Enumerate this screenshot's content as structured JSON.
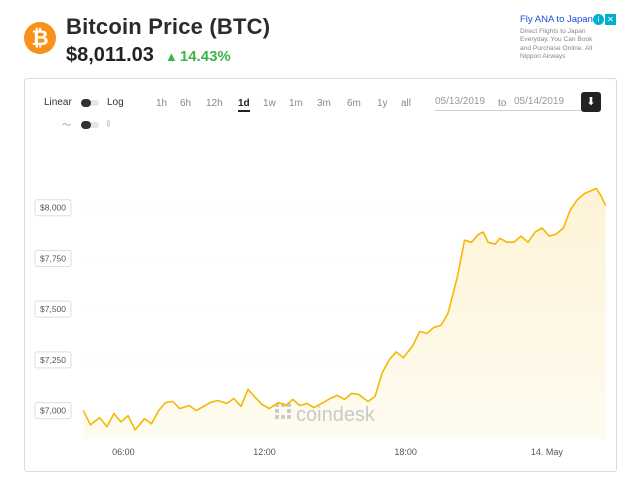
{
  "header": {
    "coin_icon": "bitcoin-icon",
    "coin_symbol": "₿",
    "title": "Bitcoin Price (BTC)",
    "price": "$8,011.03",
    "change": "14.43%",
    "change_arrow": "▲",
    "change_color": "#3cb44b",
    "brand_color": "#f7931a"
  },
  "ad": {
    "title": "Fly ANA to Japan",
    "text_lines": [
      "Direct Flights to Japan",
      "Everyday. You Can Book",
      "and Purchase Online. All",
      "Nippon Airways"
    ],
    "info_glyph": "i",
    "close_glyph": "✕"
  },
  "controls": {
    "scale_linear": "Linear",
    "scale_log": "Log",
    "ranges": [
      "1h",
      "6h",
      "12h",
      "1d",
      "1w",
      "1m",
      "3m",
      "6m",
      "1y",
      "all"
    ],
    "active_range": "1d",
    "date_from": "05/13/2019",
    "to_label": "to",
    "date_to": "05/14/2019",
    "download_glyph": "⬇",
    "line_chart_glyph": "〜",
    "candle_chart_glyph": "⫾"
  },
  "chart_data": {
    "type": "area",
    "line_color": "#f5b800",
    "fill_color": "#fdf3d6",
    "watermark": "coindesk",
    "y_ticks": [
      "$7,000",
      "$7,250",
      "$7,500",
      "$7,750",
      "$8,000"
    ],
    "y_tick_values": [
      7000,
      7250,
      7500,
      7750,
      8000
    ],
    "x_ticks": [
      "06:00",
      "12:00",
      "18:00",
      "14. May"
    ],
    "x_tick_hours": [
      6,
      12,
      18,
      24
    ],
    "ylim": [
      6860,
      8250
    ],
    "xlim": [
      4.2,
      26.6
    ],
    "grid": true,
    "series": [
      {
        "x": [
          4.3,
          4.6,
          5.0,
          5.3,
          5.6,
          5.9,
          6.2,
          6.5,
          6.9,
          7.2,
          7.5,
          7.8,
          8.1,
          8.4,
          8.8,
          9.1,
          9.4,
          9.7,
          10.0,
          10.4,
          10.7,
          11.0,
          11.3,
          11.6,
          11.9,
          12.2,
          12.6,
          12.9,
          13.2,
          13.5,
          13.8,
          14.1,
          14.5,
          14.8,
          15.1,
          15.4,
          15.7,
          16.0,
          16.4,
          16.7,
          17.0,
          17.3,
          17.6,
          17.9,
          18.3,
          18.6,
          18.9,
          19.2,
          19.5,
          19.8,
          20.2,
          20.5,
          20.8,
          21.1,
          21.3,
          21.5,
          21.8,
          22.0,
          22.3,
          22.6,
          22.9,
          23.2,
          23.5,
          23.8,
          24.1,
          24.4,
          24.7,
          25.0,
          25.3,
          25.6,
          25.9,
          26.1,
          26.3,
          26.5
        ],
        "y": [
          7000,
          6930,
          6965,
          6920,
          6985,
          6945,
          6975,
          6905,
          6960,
          6935,
          7000,
          7040,
          7045,
          7010,
          7025,
          7000,
          7020,
          7040,
          7050,
          7035,
          7060,
          7020,
          7105,
          7065,
          7030,
          7010,
          7040,
          7025,
          7055,
          7025,
          7035,
          7015,
          7040,
          7060,
          7075,
          7055,
          7085,
          7080,
          7045,
          7070,
          7185,
          7250,
          7290,
          7260,
          7320,
          7390,
          7380,
          7410,
          7420,
          7480,
          7660,
          7840,
          7830,
          7870,
          7880,
          7830,
          7820,
          7850,
          7830,
          7830,
          7860,
          7830,
          7880,
          7900,
          7860,
          7870,
          7900,
          7990,
          8040,
          8070,
          8085,
          8095,
          8060,
          8011
        ]
      }
    ]
  }
}
